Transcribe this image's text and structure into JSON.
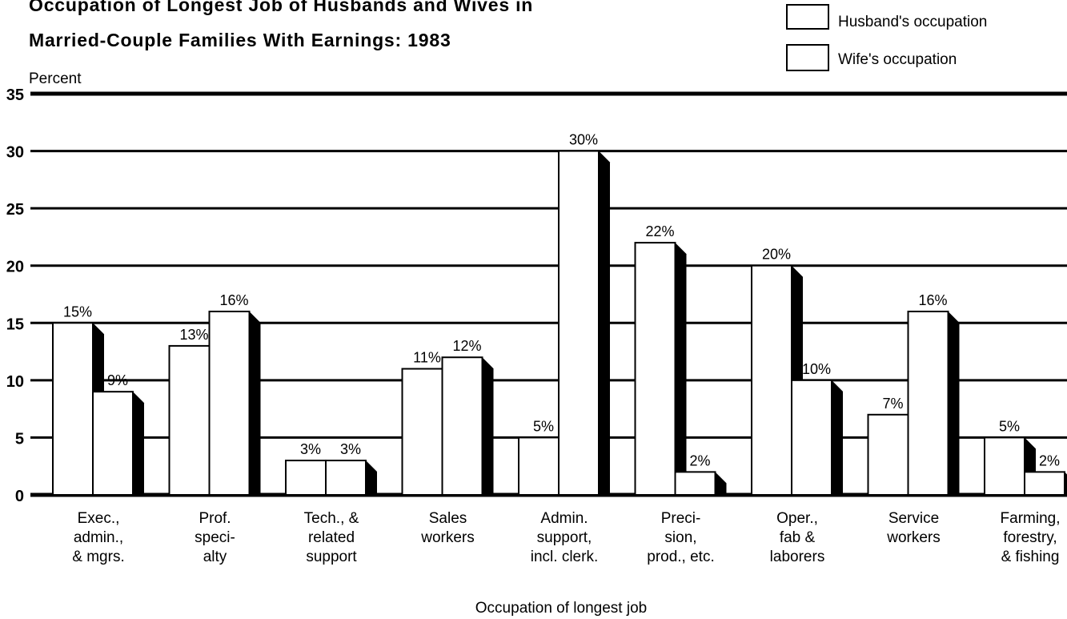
{
  "title_lines": [
    "Occupation of Longest Job of Husbands and Wives in",
    "Married-Couple Families With Earnings:  1983"
  ],
  "chart_data": {
    "type": "bar",
    "title": "Occupation of Longest Job of Husbands and Wives in Married-Couple Families With Earnings:  1983",
    "ylabel": "Percent",
    "xlabel": "Occupation of longest job",
    "ylim": [
      0,
      35
    ],
    "yticks": [
      0,
      5,
      10,
      15,
      20,
      25,
      30,
      35
    ],
    "grid": "horizontal",
    "legend_position": "top-right",
    "categories": [
      [
        "Exec.,",
        "admin.,",
        "& mgrs."
      ],
      [
        "Prof.",
        "speci-",
        "alty"
      ],
      [
        "Tech., &",
        "related",
        "support"
      ],
      [
        "Sales",
        "workers"
      ],
      [
        "Admin.",
        "support,",
        "incl. clerk."
      ],
      [
        "Preci-",
        "sion,",
        "prod., etc."
      ],
      [
        "Oper.,",
        "fab &",
        "laborers"
      ],
      [
        "Service",
        "workers"
      ],
      [
        "Farming,",
        "forestry,",
        "& fishing"
      ]
    ],
    "series": [
      {
        "name": "Husband's occupation",
        "values": [
          15,
          13,
          3,
          11,
          5,
          22,
          20,
          7,
          5
        ],
        "labels": [
          "15%",
          "13%",
          "3%",
          "11%",
          "5%",
          "22%",
          "20%",
          "7%",
          "5%"
        ]
      },
      {
        "name": "Wife's occupation",
        "values": [
          9,
          16,
          3,
          12,
          30,
          2,
          10,
          16,
          2
        ],
        "labels": [
          "9%",
          "16%",
          "3%",
          "12%",
          "30%",
          "2%",
          "10%",
          "16%",
          "2%"
        ]
      }
    ]
  },
  "colors": {
    "bar_fill": "#ffffff",
    "bar_outline": "#000000",
    "shadow": "#000000",
    "grid": "#000000"
  }
}
